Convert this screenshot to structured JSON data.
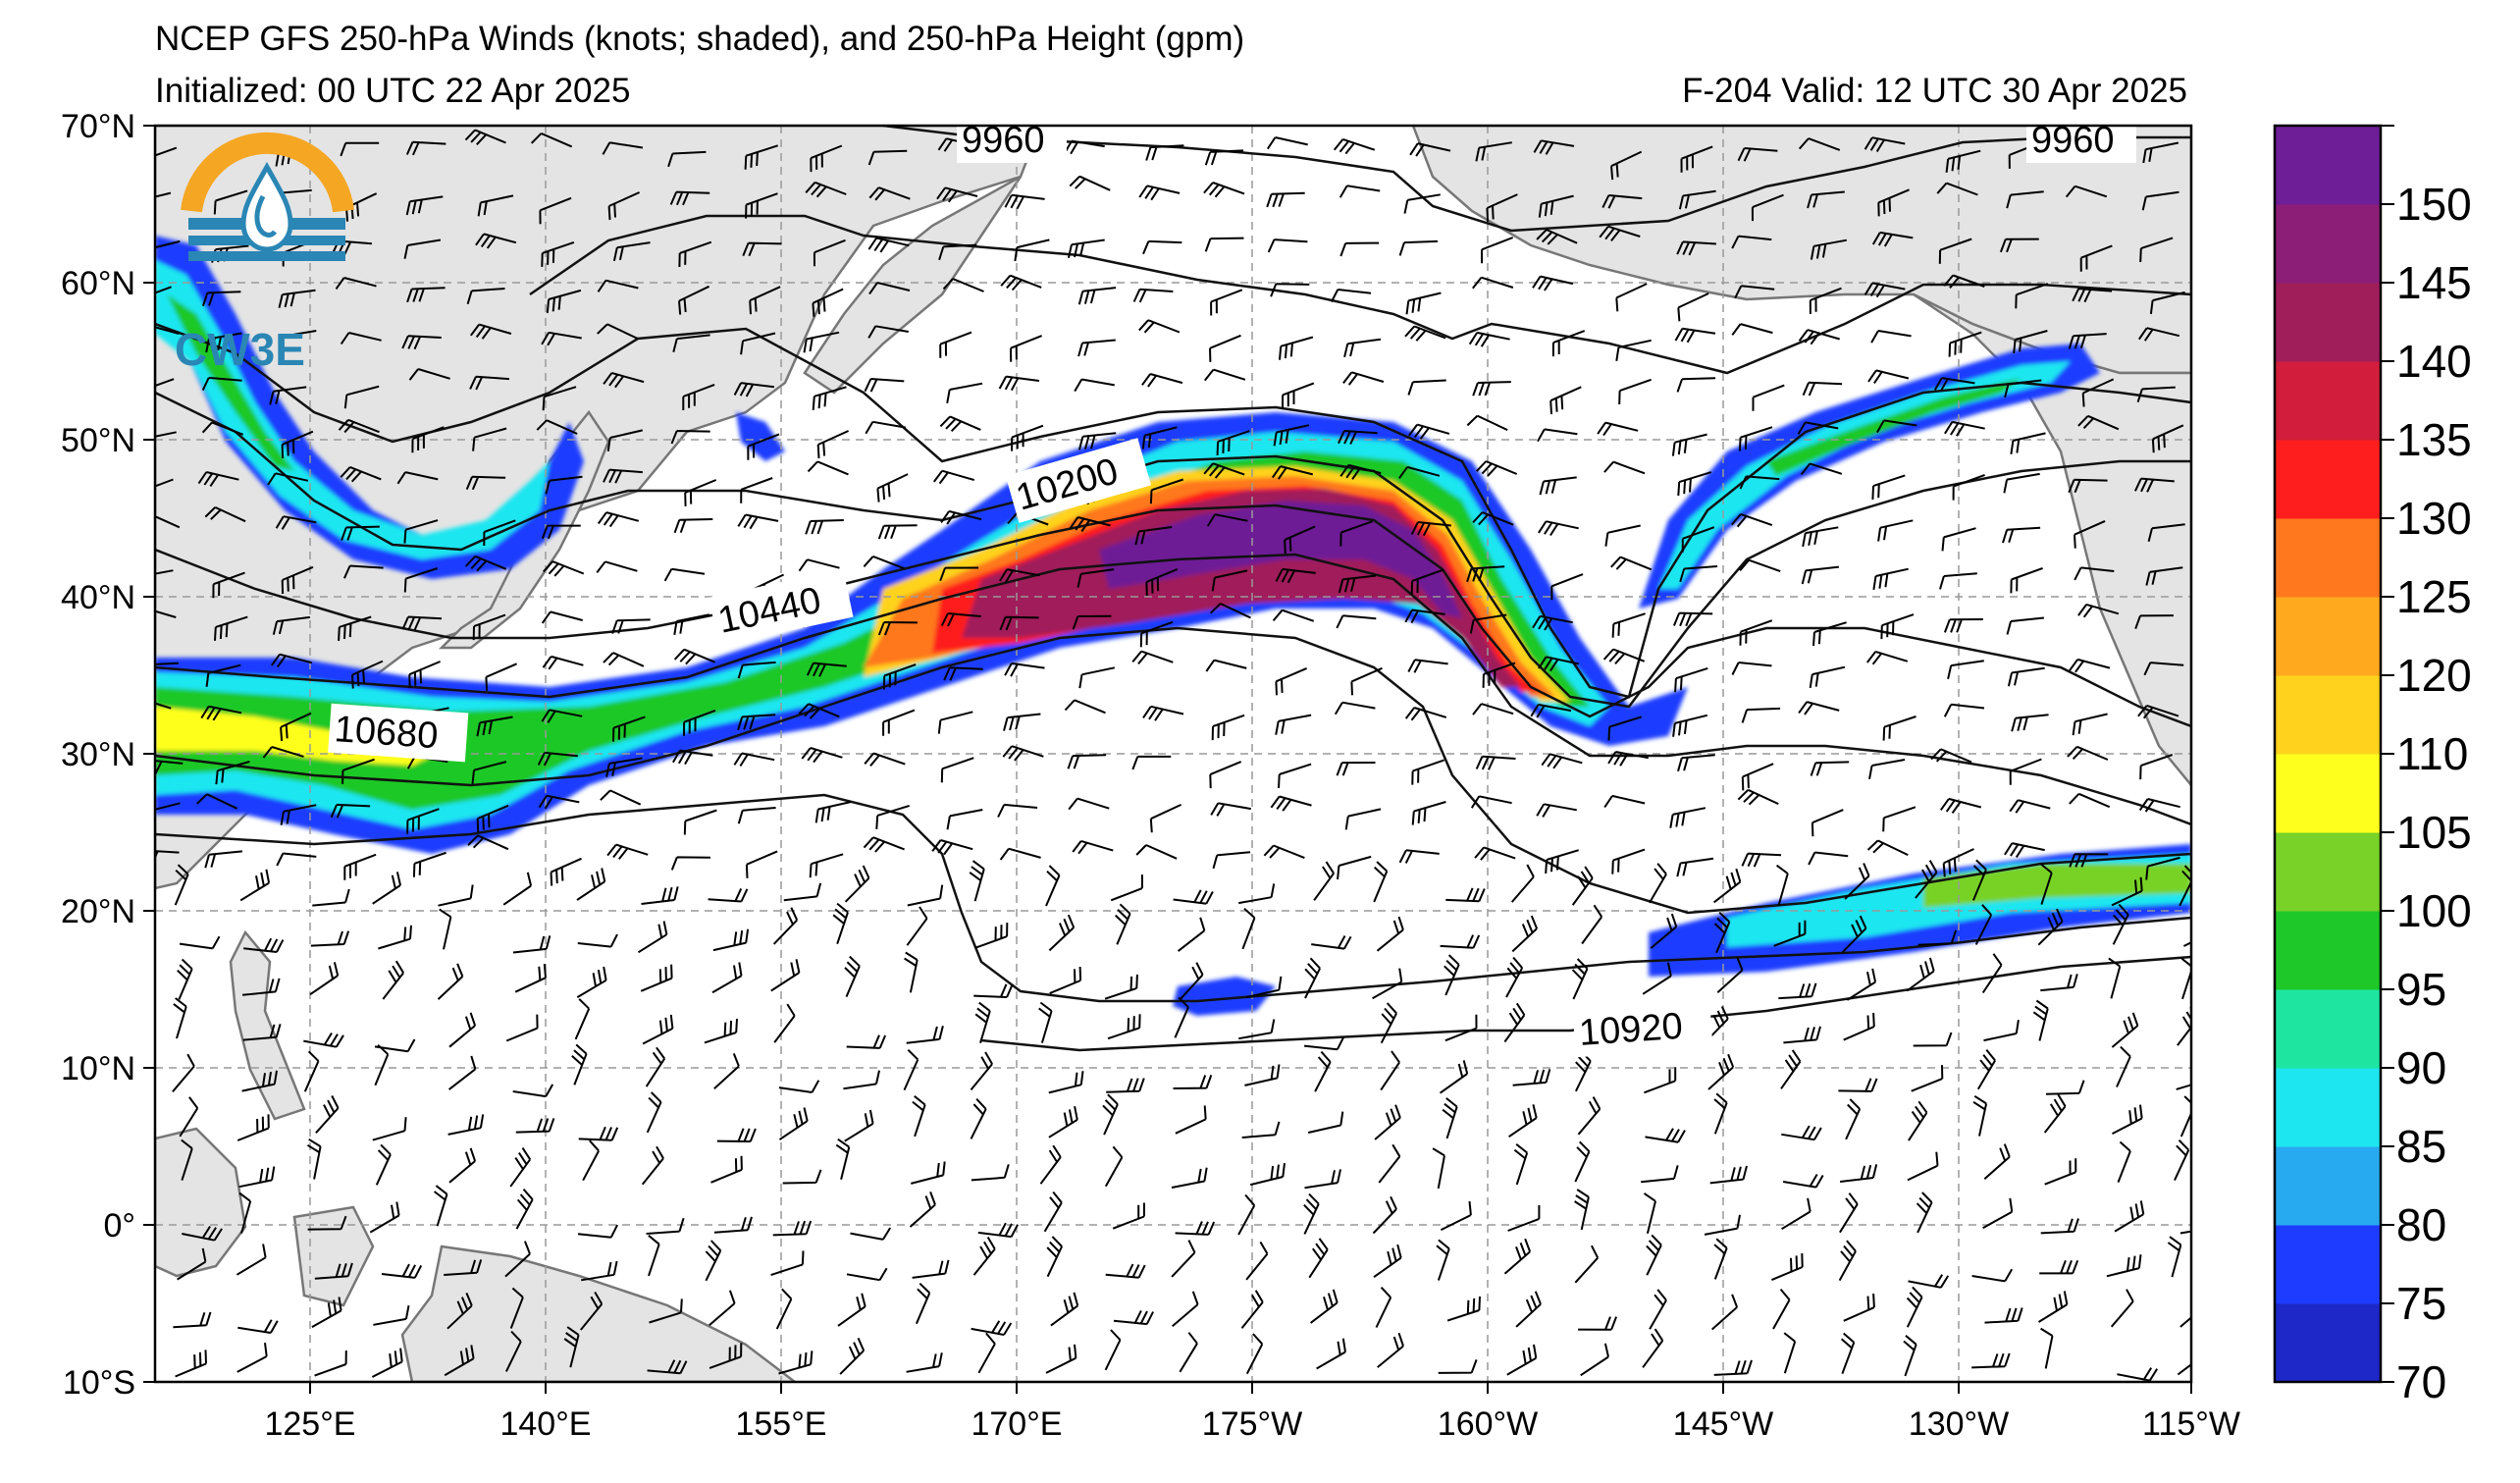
{
  "header": {
    "title": "NCEP GFS 250-hPa Winds (knots; shaded), and 250-hPa Height (gpm)",
    "initialized": "Initialized: 00 UTC 22 Apr 2025",
    "valid": "F-204  Valid: 12 UTC 30 Apr 2025"
  },
  "logo": {
    "text": "CW3E",
    "icon": "water-drop-sun-logo-icon"
  },
  "map": {
    "lon_ticks": [
      "125°E",
      "140°E",
      "155°E",
      "170°E",
      "175°W",
      "160°W",
      "145°W",
      "130°W",
      "115°W"
    ],
    "lat_ticks": [
      "70°N",
      "60°N",
      "50°N",
      "40°N",
      "30°N",
      "20°N",
      "10°N",
      "0°",
      "10°S"
    ],
    "lon_range": [
      110,
      245
    ],
    "lat_range": [
      -10,
      70
    ],
    "grid": true,
    "contour_labels": [
      "9960",
      "9960",
      "10200",
      "10440",
      "10680",
      "10920"
    ],
    "land_color": "#e4e4e4",
    "coast_color": "#777777"
  },
  "colorbar": {
    "labels": [
      "70",
      "75",
      "80",
      "85",
      "90",
      "95",
      "100",
      "105",
      "110",
      "120",
      "125",
      "130",
      "135",
      "140",
      "145",
      "150"
    ],
    "colors": [
      "#1e28c8",
      "#1e3cff",
      "#28aaf0",
      "#1ee6f0",
      "#1ee6a0",
      "#1ec828",
      "#78d228",
      "#ffff1e",
      "#ffd21e",
      "#ffaa1e",
      "#ff781e",
      "#ff1e1e",
      "#d21e3c",
      "#a01e5a",
      "#8c1e78",
      "#6e1e96"
    ]
  }
}
